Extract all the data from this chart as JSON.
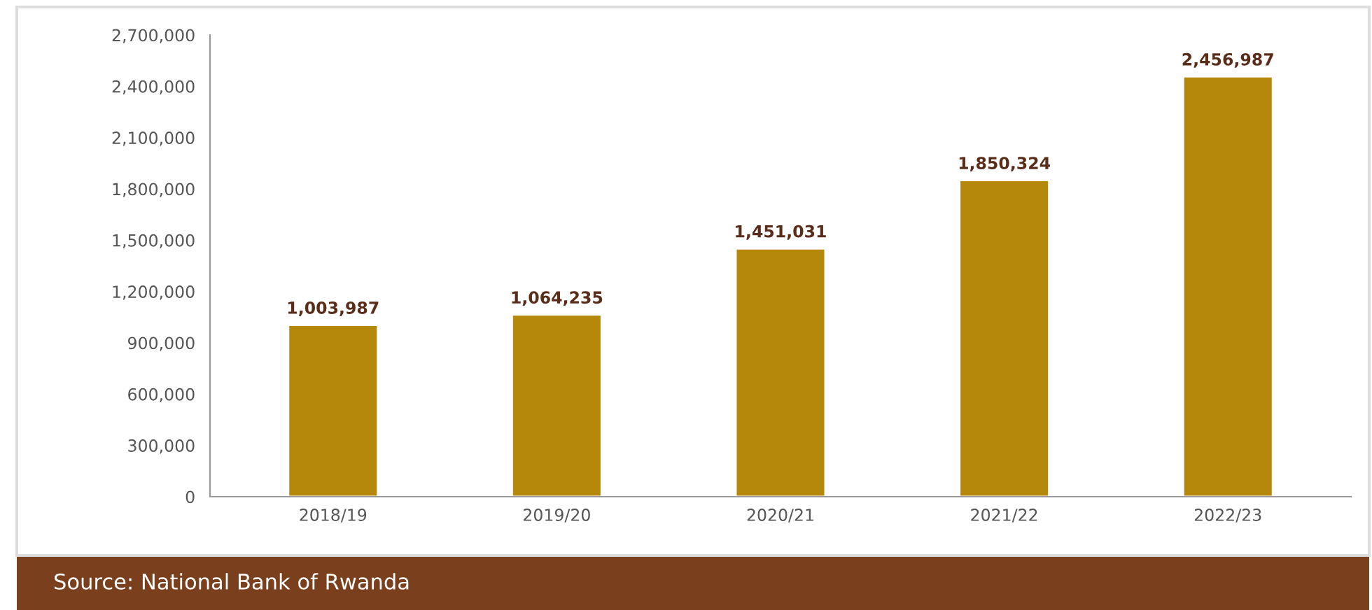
{
  "chart_data": {
    "type": "bar",
    "categories": [
      "2018/19",
      "2019/20",
      "2020/21",
      "2021/22",
      "2022/23"
    ],
    "values": [
      1003987,
      1064235,
      1451031,
      1850324,
      2456987
    ],
    "value_labels": [
      "1,003,987",
      "1,064,235",
      "1,451,031",
      "1,850,324",
      "2,456,987"
    ],
    "color": "#b5870b",
    "ylim": [
      0,
      2700000
    ],
    "yticks": [
      {
        "value": 0,
        "label": "0"
      },
      {
        "value": 300000,
        "label": "300,000"
      },
      {
        "value": 600000,
        "label": "600,000"
      },
      {
        "value": 900000,
        "label": "900,000"
      },
      {
        "value": 1200000,
        "label": "1,200,000"
      },
      {
        "value": 1500000,
        "label": "1,500,000"
      },
      {
        "value": 1800000,
        "label": "1,800,000"
      },
      {
        "value": 2100000,
        "label": "2,100,000"
      },
      {
        "value": 2400000,
        "label": "2,400,000"
      },
      {
        "value": 2700000,
        "label": "2,700,000"
      }
    ],
    "grid": false,
    "legend": false,
    "annotations": [
      "Source: National Bank of Rwanda"
    ]
  }
}
